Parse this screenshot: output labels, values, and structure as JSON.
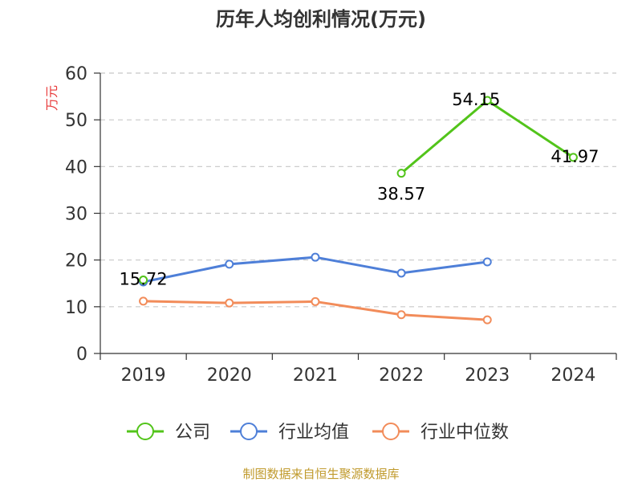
{
  "chart_data": {
    "type": "line",
    "title": "历年人均创利情况(万元)",
    "ylabel": "万元",
    "xlabel": "",
    "categories": [
      "2019",
      "2020",
      "2021",
      "2022",
      "2023",
      "2024"
    ],
    "ylim": [
      0,
      60
    ],
    "yticks": [
      0,
      10,
      20,
      30,
      40,
      50,
      60
    ],
    "grid": true,
    "legend_position": "bottom",
    "series": [
      {
        "name": "公司",
        "color": "#52c41a",
        "values": [
          15.72,
          null,
          null,
          38.57,
          54.15,
          41.97
        ],
        "labels": [
          "15.72",
          "",
          "",
          "38.57",
          "54.15",
          "41.97"
        ]
      },
      {
        "name": "行业均值",
        "color": "#4e7fd8",
        "values": [
          15.3,
          19.1,
          20.6,
          17.2,
          19.6,
          null
        ]
      },
      {
        "name": "行业中位数",
        "color": "#f28c5a",
        "values": [
          11.2,
          10.8,
          11.1,
          8.3,
          7.2,
          null
        ]
      }
    ],
    "ylabel_color": "#e83a3a"
  },
  "footer": {
    "source": "制图数据来自恒生聚源数据库",
    "color": "#c09a2c"
  }
}
